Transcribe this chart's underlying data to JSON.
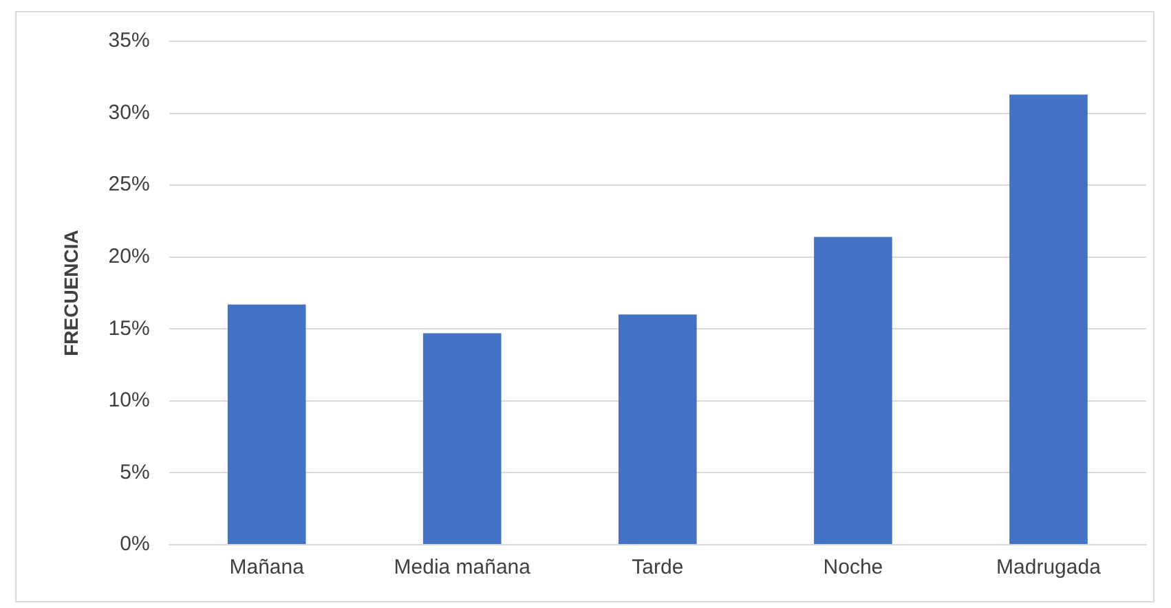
{
  "chart_data": {
    "type": "bar",
    "ylabel": "FRECUENCIA",
    "categories": [
      "Mañana",
      "Media mañana",
      "Tarde",
      "Noche",
      "Madrugada"
    ],
    "values": [
      16.7,
      14.7,
      16.0,
      21.4,
      31.3
    ],
    "color": "#4472c4",
    "ylim": [
      0,
      35
    ],
    "yticks": [
      {
        "value": 0,
        "label": "0%"
      },
      {
        "value": 5,
        "label": "5%"
      },
      {
        "value": 10,
        "label": "10%"
      },
      {
        "value": 15,
        "label": "15%"
      },
      {
        "value": 20,
        "label": "20%"
      },
      {
        "value": 25,
        "label": "25%"
      },
      {
        "value": 30,
        "label": "30%"
      },
      {
        "value": 35,
        "label": "35%"
      }
    ],
    "grid": "y"
  }
}
